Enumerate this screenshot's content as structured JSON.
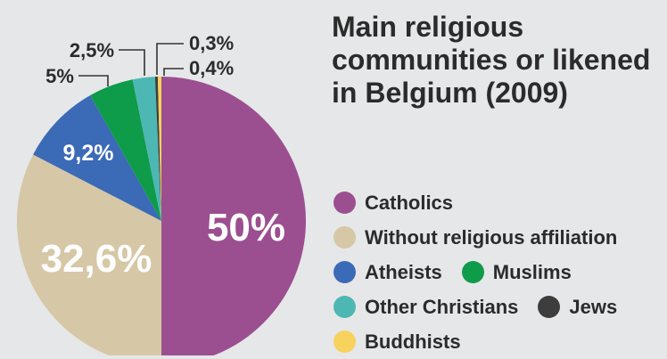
{
  "title": "Main religious communities or likened in Belgium (2009)",
  "colors": {
    "catholics": "#9b4f90",
    "without": "#d6c8a6",
    "atheists": "#3b6ab7",
    "muslims": "#0e9b4a",
    "other_christians": "#4db7b4",
    "jews": "#3d3d3d",
    "buddhists": "#f7d25c"
  },
  "legend": {
    "catholics": "Catholics",
    "without": "Without religious affiliation",
    "atheists": "Atheists",
    "muslims": "Muslims",
    "other_christians": "Other Christians",
    "jews": "Jews",
    "buddhists": "Buddhists"
  },
  "chart_data": {
    "type": "pie",
    "title": "Main religious communities or likened in Belgium (2009)",
    "slices": [
      {
        "key": "catholics",
        "name": "Catholics",
        "value": 50,
        "label": "50%"
      },
      {
        "key": "without",
        "name": "Without religious affiliation",
        "value": 32.6,
        "label": "32,6%"
      },
      {
        "key": "atheists",
        "name": "Atheists",
        "value": 9.2,
        "label": "9,2%"
      },
      {
        "key": "muslims",
        "name": "Muslims",
        "value": 5,
        "label": "5%"
      },
      {
        "key": "other_christians",
        "name": "Other Christians",
        "value": 2.5,
        "label": "2,5%"
      },
      {
        "key": "jews",
        "name": "Jews",
        "value": 0.3,
        "label": "0,3%"
      },
      {
        "key": "buddhists",
        "name": "Buddhists",
        "value": 0.4,
        "label": "0,4%"
      }
    ],
    "legend_placement": "right"
  }
}
